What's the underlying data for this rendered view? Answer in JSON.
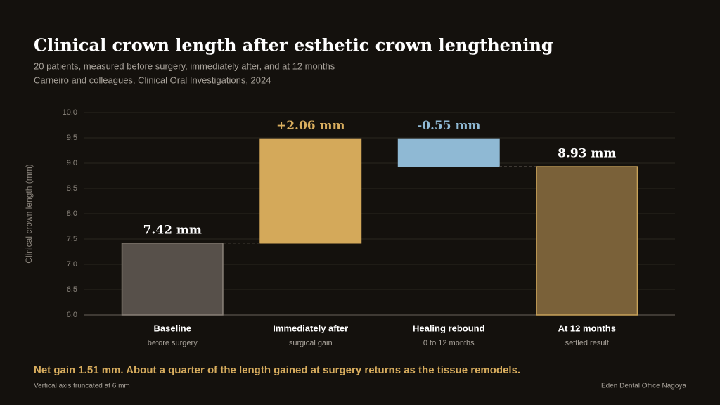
{
  "chart_data": {
    "type": "waterfall",
    "title": "Clinical crown length after esthetic crown lengthening",
    "subtitle": [
      "20 patients, measured before surgery, immediately after, and at 12 months",
      "Carneiro and colleagues, Clinical Oral Investigations, 2024"
    ],
    "y_label": "Clinical crown length (mm)",
    "categories": [
      "Baseline",
      "Immediately after",
      "Healing rebound",
      "At 12 months"
    ],
    "sublabels": [
      "before surgery",
      "surgical gain",
      "0 to 12 months",
      "settled result"
    ],
    "values": [
      7.42,
      2.06,
      -0.55,
      8.93
    ],
    "value_labels": [
      "7.42 mm",
      "+2.06 mm",
      "-0.55 mm",
      "8.93 mm"
    ],
    "measures": [
      "absolute",
      "relative",
      "relative",
      "total"
    ],
    "colors": [
      "#57504a",
      "#d4a95a",
      "#8fb9d4",
      "#7a6139"
    ],
    "label_colors": [
      "#ffffff",
      "#d8ad5e",
      "#8fb9d4",
      "#ffffff"
    ],
    "ylim": [
      6,
      10
    ],
    "yticks": [
      {
        "value": 6,
        "label": "6.0"
      },
      {
        "value": 6.5,
        "label": "6.5"
      },
      {
        "value": 7,
        "label": "7.0"
      },
      {
        "value": 7.5,
        "label": "7.5"
      },
      {
        "value": 8,
        "label": "8.0"
      },
      {
        "value": 8.5,
        "label": "8.5"
      },
      {
        "value": 9,
        "label": "9.0"
      },
      {
        "value": 9.5,
        "label": "9.5"
      },
      {
        "value": 10,
        "label": "10.0"
      }
    ],
    "grid": true,
    "annotation": "Net gain 1.51 mm. About a quarter of the length gained at surgery returns as the tissue remodels.",
    "footnote": "Vertical axis truncated at 6 mm",
    "source": "Eden Dental Office Nagoya"
  }
}
